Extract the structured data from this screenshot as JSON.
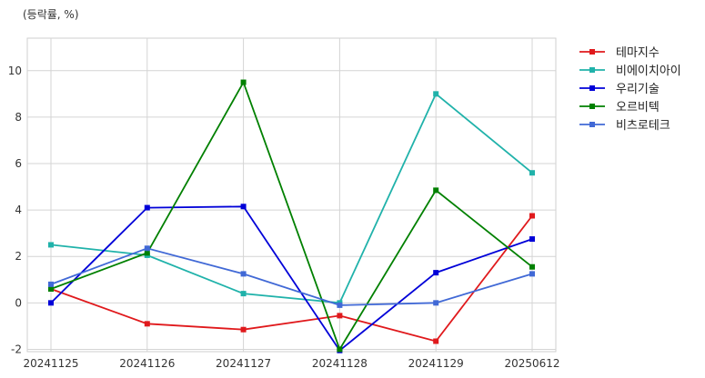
{
  "chart_data": {
    "type": "line",
    "title": "",
    "xlabel": "",
    "ylabel": "(등락률, %)",
    "categories": [
      "20241125",
      "20241126",
      "20241127",
      "20241128",
      "20241129",
      "20250612"
    ],
    "ylim": [
      -2.1,
      11.4
    ],
    "yticks": [
      -2,
      0,
      2,
      4,
      6,
      8,
      10
    ],
    "grid": true,
    "legend_position": "right-top",
    "series": [
      {
        "name": "테마지수",
        "color": "#e0191c",
        "values": [
          0.6,
          -0.9,
          -1.15,
          -0.55,
          -1.65,
          3.75
        ]
      },
      {
        "name": "비에이치아이",
        "color": "#20b2aa",
        "values": [
          2.5,
          2.05,
          0.4,
          0.0,
          9.0,
          5.6
        ]
      },
      {
        "name": "우리기술",
        "color": "#0000d8",
        "values": [
          0.0,
          4.1,
          4.15,
          -2.05,
          1.3,
          2.75
        ]
      },
      {
        "name": "오르비텍",
        "color": "#008000",
        "values": [
          0.6,
          2.15,
          9.5,
          -2.0,
          4.85,
          1.55
        ]
      },
      {
        "name": "비츠로테크",
        "color": "#4169d6",
        "values": [
          0.8,
          2.35,
          1.25,
          -0.1,
          0.0,
          1.25
        ]
      }
    ]
  }
}
